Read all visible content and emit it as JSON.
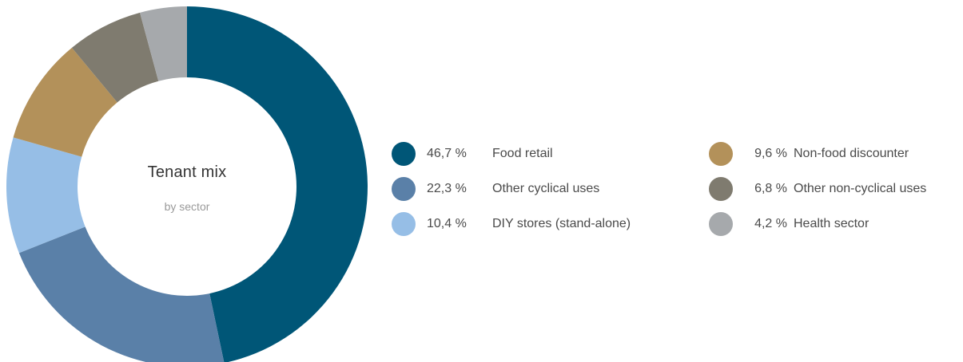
{
  "chart_data": {
    "type": "pie",
    "title": "Tenant mix",
    "subtitle": "by sector",
    "slices": [
      {
        "value_label": "46,7 %",
        "label": "Food retail",
        "value": 46.7,
        "color": "#005677"
      },
      {
        "value_label": "22,3 %",
        "label": "Other cyclical uses",
        "value": 22.3,
        "color": "#5a80a8"
      },
      {
        "value_label": "10,4 %",
        "label": "DIY stores (stand-alone)",
        "value": 10.4,
        "color": "#96bee6"
      },
      {
        "value_label": "9,6 %",
        "label": "Non-food discounter",
        "value": 9.6,
        "color": "#b3915a"
      },
      {
        "value_label": "6,8 %",
        "label": "Other non-cyclical uses",
        "value": 6.8,
        "color": "#7f7b6f"
      },
      {
        "value_label": "4,2 %",
        "label": "Health sector",
        "value": 4.2,
        "color": "#a6a9ac"
      }
    ],
    "legend_placement": "right"
  }
}
